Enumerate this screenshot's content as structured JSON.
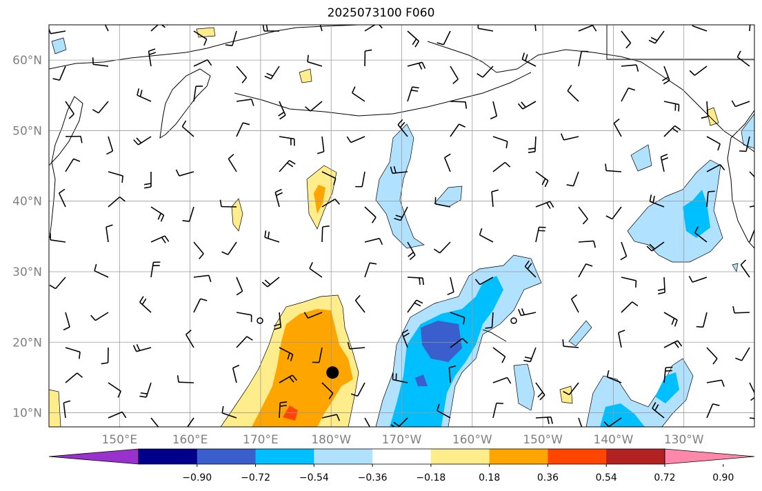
{
  "title": "2025073100 F060",
  "map": {
    "lat_range": [
      8,
      65
    ],
    "lon_range": [
      140,
      240
    ],
    "lat_labels": [
      {
        "lat": 60,
        "text": "60°N"
      },
      {
        "lat": 50,
        "text": "50°N"
      },
      {
        "lat": 40,
        "text": "40°N"
      },
      {
        "lat": 30,
        "text": "30°N"
      },
      {
        "lat": 20,
        "text": "20°N"
      },
      {
        "lat": 10,
        "text": "10°N"
      }
    ],
    "lon_labels": [
      {
        "lon": 150,
        "text": "150°E"
      },
      {
        "lon": 160,
        "text": "160°E"
      },
      {
        "lon": 170,
        "text": "170°E"
      },
      {
        "lon": 180,
        "text": "180°W"
      },
      {
        "lon": 190,
        "text": "170°W"
      },
      {
        "lon": 200,
        "text": "160°W"
      },
      {
        "lon": 210,
        "text": "150°W"
      },
      {
        "lon": 220,
        "text": "140°W"
      },
      {
        "lon": 230,
        "text": "130°W"
      }
    ],
    "storm_center": {
      "lon": 180.2,
      "lat": 15.7
    }
  },
  "colorbar": {
    "colors": [
      "#9932cc",
      "#00008b",
      "#3a5fcd",
      "#00bfff",
      "#b0e2ff",
      "#ffffff",
      "#ffec8b",
      "#ffa500",
      "#ff4500",
      "#b22222",
      "#ff88aa"
    ],
    "ticks": [
      "−0.90",
      "−0.72",
      "−0.54",
      "−0.36",
      "−0.18",
      "0.18",
      "0.36",
      "0.54",
      "0.72",
      "0.90"
    ]
  }
}
